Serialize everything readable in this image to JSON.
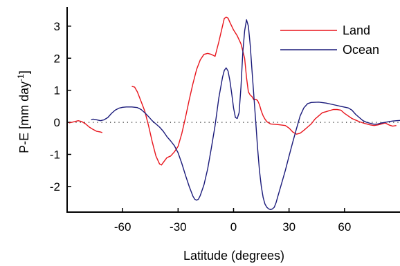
{
  "chart_data": {
    "type": "line",
    "xlabel": "Latitude (degrees)",
    "ylabel": {
      "base": "P-E [mm day",
      "sup": "-1",
      "close": "]"
    },
    "xlim": [
      -90,
      90
    ],
    "ylim": [
      -2.8,
      3.6
    ],
    "x_ticks": [
      -60,
      -30,
      0,
      30,
      60
    ],
    "x_tick_labels": [
      "-60",
      "-30",
      "0",
      "30",
      "60"
    ],
    "y_ticks": [
      -2,
      -1,
      0,
      1,
      2,
      3
    ],
    "y_tick_labels": [
      "-2",
      "-1",
      "0",
      "1",
      "2",
      "3"
    ],
    "zero_line": "dotted",
    "legend_position": "top-right",
    "series": [
      {
        "name": "Land",
        "color": "#e8141c",
        "segments": [
          [
            [
              -89,
              -0.02
            ],
            [
              -86,
              0.02
            ],
            [
              -84,
              0.05
            ],
            [
              -82,
              0.02
            ],
            [
              -80,
              -0.05
            ],
            [
              -78,
              -0.15
            ],
            [
              -76,
              -0.22
            ],
            [
              -74,
              -0.28
            ],
            [
              -72,
              -0.3
            ],
            [
              -71,
              -0.32
            ]
          ],
          [
            [
              -55,
              1.12
            ],
            [
              -53.5,
              1.1
            ],
            [
              -52,
              0.95
            ],
            [
              -50,
              0.65
            ],
            [
              -48,
              0.35
            ],
            [
              -46,
              -0.1
            ],
            [
              -44,
              -0.6
            ],
            [
              -42,
              -1.05
            ],
            [
              -40,
              -1.3
            ],
            [
              -39,
              -1.33
            ],
            [
              -38,
              -1.25
            ],
            [
              -36,
              -1.1
            ],
            [
              -34,
              -1.05
            ],
            [
              -32,
              -0.92
            ],
            [
              -30,
              -0.75
            ],
            [
              -28,
              -0.35
            ],
            [
              -26,
              0.15
            ],
            [
              -24,
              0.7
            ],
            [
              -22,
              1.2
            ],
            [
              -20,
              1.65
            ],
            [
              -18,
              1.95
            ],
            [
              -16,
              2.12
            ],
            [
              -14,
              2.15
            ],
            [
              -12,
              2.12
            ],
            [
              -10,
              2.06
            ],
            [
              -8,
              2.5
            ],
            [
              -6,
              3.0
            ],
            [
              -5,
              3.24
            ],
            [
              -4,
              3.28
            ],
            [
              -3,
              3.25
            ],
            [
              -2,
              3.12
            ],
            [
              0,
              2.88
            ],
            [
              2,
              2.7
            ],
            [
              4,
              2.45
            ],
            [
              6,
              2.0
            ],
            [
              7,
              1.4
            ],
            [
              8,
              0.95
            ],
            [
              9,
              0.85
            ],
            [
              10,
              0.8
            ],
            [
              11,
              0.7
            ],
            [
              12,
              0.72
            ],
            [
              13,
              0.68
            ],
            [
              14,
              0.55
            ],
            [
              15,
              0.35
            ],
            [
              16,
              0.2
            ],
            [
              17,
              0.1
            ],
            [
              18,
              0.02
            ],
            [
              20,
              -0.05
            ],
            [
              24,
              -0.07
            ],
            [
              28,
              -0.1
            ],
            [
              30,
              -0.18
            ],
            [
              32,
              -0.3
            ],
            [
              34,
              -0.37
            ],
            [
              36,
              -0.34
            ],
            [
              38,
              -0.25
            ],
            [
              40,
              -0.15
            ],
            [
              42,
              -0.05
            ],
            [
              44,
              0.1
            ],
            [
              46,
              0.2
            ],
            [
              48,
              0.3
            ],
            [
              50,
              0.33
            ],
            [
              52,
              0.37
            ],
            [
              54,
              0.4
            ],
            [
              56,
              0.4
            ],
            [
              58,
              0.38
            ],
            [
              60,
              0.28
            ],
            [
              62,
              0.2
            ],
            [
              64,
              0.12
            ],
            [
              66,
              0.07
            ],
            [
              68,
              0.02
            ],
            [
              70,
              -0.02
            ],
            [
              72,
              -0.05
            ],
            [
              74,
              -0.08
            ],
            [
              76,
              -0.1
            ],
            [
              78,
              -0.08
            ],
            [
              80,
              -0.05
            ],
            [
              82,
              -0.02
            ],
            [
              84,
              -0.08
            ],
            [
              86,
              -0.12
            ],
            [
              88,
              -0.1
            ]
          ]
        ]
      },
      {
        "name": "Ocean",
        "color": "#1a1a7a",
        "segments": [
          [
            [
              -77,
              0.08
            ],
            [
              -76,
              0.1
            ],
            [
              -74,
              0.08
            ],
            [
              -72,
              0.05
            ],
            [
              -70,
              0.08
            ],
            [
              -68,
              0.15
            ],
            [
              -66,
              0.28
            ],
            [
              -64,
              0.38
            ],
            [
              -62,
              0.44
            ],
            [
              -60,
              0.47
            ],
            [
              -58,
              0.48
            ],
            [
              -55,
              0.48
            ],
            [
              -52,
              0.46
            ],
            [
              -50,
              0.4
            ],
            [
              -48,
              0.3
            ],
            [
              -46,
              0.18
            ],
            [
              -44,
              0.05
            ],
            [
              -42,
              -0.05
            ],
            [
              -40,
              -0.15
            ],
            [
              -38,
              -0.28
            ],
            [
              -36,
              -0.45
            ],
            [
              -34,
              -0.58
            ],
            [
              -32,
              -0.73
            ],
            [
              -30,
              -0.95
            ],
            [
              -28,
              -1.28
            ],
            [
              -26,
              -1.65
            ],
            [
              -24,
              -2.0
            ],
            [
              -22,
              -2.3
            ],
            [
              -21,
              -2.4
            ],
            [
              -20,
              -2.43
            ],
            [
              -19,
              -2.4
            ],
            [
              -18,
              -2.28
            ],
            [
              -16,
              -1.95
            ],
            [
              -14,
              -1.45
            ],
            [
              -12,
              -0.8
            ],
            [
              -10,
              -0.1
            ],
            [
              -8,
              0.75
            ],
            [
              -6,
              1.4
            ],
            [
              -5,
              1.62
            ],
            [
              -4,
              1.7
            ],
            [
              -3,
              1.6
            ],
            [
              -2,
              1.3
            ],
            [
              -1,
              0.9
            ],
            [
              0,
              0.45
            ],
            [
              1,
              0.15
            ],
            [
              2,
              0.12
            ],
            [
              3,
              0.3
            ],
            [
              4,
              1.1
            ],
            [
              5,
              2.2
            ],
            [
              6,
              2.85
            ],
            [
              7,
              3.2
            ],
            [
              8,
              3.0
            ],
            [
              9,
              2.4
            ],
            [
              10,
              1.6
            ],
            [
              11,
              0.8
            ],
            [
              12,
              0.0
            ],
            [
              13,
              -0.8
            ],
            [
              14,
              -1.5
            ],
            [
              15,
              -2.0
            ],
            [
              16,
              -2.35
            ],
            [
              17,
              -2.55
            ],
            [
              18,
              -2.65
            ],
            [
              19,
              -2.7
            ],
            [
              20,
              -2.72
            ],
            [
              21,
              -2.7
            ],
            [
              22,
              -2.65
            ],
            [
              23,
              -2.5
            ],
            [
              24,
              -2.3
            ],
            [
              26,
              -1.9
            ],
            [
              28,
              -1.5
            ],
            [
              30,
              -1.05
            ],
            [
              32,
              -0.62
            ],
            [
              34,
              -0.2
            ],
            [
              36,
              0.2
            ],
            [
              38,
              0.45
            ],
            [
              40,
              0.58
            ],
            [
              42,
              0.62
            ],
            [
              46,
              0.63
            ],
            [
              50,
              0.6
            ],
            [
              54,
              0.55
            ],
            [
              58,
              0.5
            ],
            [
              62,
              0.45
            ],
            [
              64,
              0.38
            ],
            [
              66,
              0.25
            ],
            [
              68,
              0.15
            ],
            [
              70,
              0.05
            ],
            [
              72,
              0.0
            ],
            [
              74,
              -0.03
            ],
            [
              76,
              -0.06
            ],
            [
              78,
              -0.05
            ],
            [
              80,
              -0.02
            ],
            [
              82,
              0.0
            ],
            [
              84,
              0.02
            ],
            [
              86,
              0.04
            ],
            [
              88,
              0.05
            ],
            [
              90,
              0.06
            ]
          ]
        ]
      }
    ]
  }
}
